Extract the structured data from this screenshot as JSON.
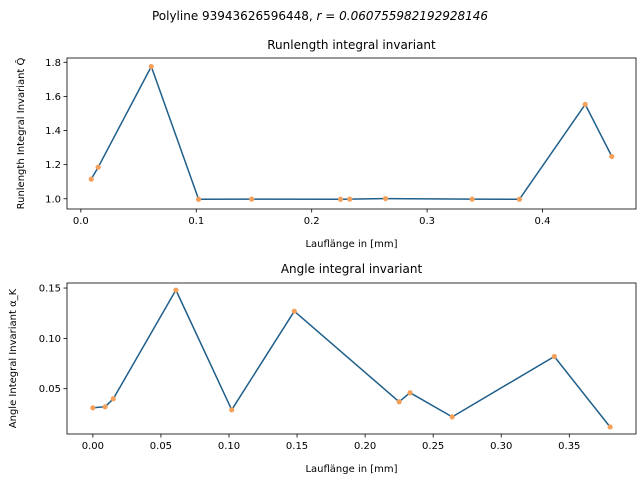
{
  "figure": {
    "suptitle_prefix": "Polyline 93943626596448, ",
    "suptitle_math": "r = 0.060755982192928146"
  },
  "colors": {
    "line": "#1f5f8b",
    "marker": "#f5a05a",
    "axis": "#000000"
  },
  "chart_data": [
    {
      "type": "line",
      "title": "Runlength integral invariant",
      "xlabel": "Lauflänge in [mm]",
      "ylabel": "Runlength Integral Invariant Q̂",
      "xlim": [
        -0.012,
        0.481
      ],
      "ylim": [
        0.94,
        1.825
      ],
      "grid": false,
      "xticks": [
        0.0,
        0.1,
        0.2,
        0.3,
        0.4
      ],
      "xtick_labels": [
        "0.0",
        "0.1",
        "0.2",
        "0.3",
        "0.4"
      ],
      "yticks": [
        1.0,
        1.2,
        1.4,
        1.6,
        1.8
      ],
      "ytick_labels": [
        "1.0",
        "1.2",
        "1.4",
        "1.6",
        "1.8"
      ],
      "series": [
        {
          "x": [
            0.009,
            0.015,
            0.061,
            0.102,
            0.148,
            0.225,
            0.233,
            0.264,
            0.339,
            0.38,
            0.437,
            0.46
          ],
          "y": [
            1.115,
            1.185,
            1.775,
            0.997,
            0.998,
            0.997,
            0.998,
            1.001,
            0.998,
            0.997,
            1.553,
            1.248
          ]
        }
      ]
    },
    {
      "type": "line",
      "title": "Angle integral invariant",
      "xlabel": "Lauflänge in [mm]",
      "ylabel": "Angle Integral Invariant α_K",
      "xlim": [
        -0.019,
        0.399
      ],
      "ylim": [
        0.005,
        0.155
      ],
      "grid": false,
      "xticks": [
        0.0,
        0.05,
        0.1,
        0.15,
        0.2,
        0.25,
        0.3,
        0.35
      ],
      "xtick_labels": [
        "0.00",
        "0.05",
        "0.10",
        "0.15",
        "0.20",
        "0.25",
        "0.30",
        "0.35"
      ],
      "yticks": [
        0.05,
        0.1,
        0.15
      ],
      "ytick_labels": [
        "0.05",
        "0.10",
        "0.15"
      ],
      "series": [
        {
          "x": [
            0.0,
            0.009,
            0.015,
            0.061,
            0.102,
            0.148,
            0.225,
            0.233,
            0.264,
            0.339,
            0.38
          ],
          "y": [
            0.031,
            0.032,
            0.04,
            0.148,
            0.029,
            0.127,
            0.037,
            0.046,
            0.022,
            0.082,
            0.012
          ]
        }
      ]
    }
  ]
}
